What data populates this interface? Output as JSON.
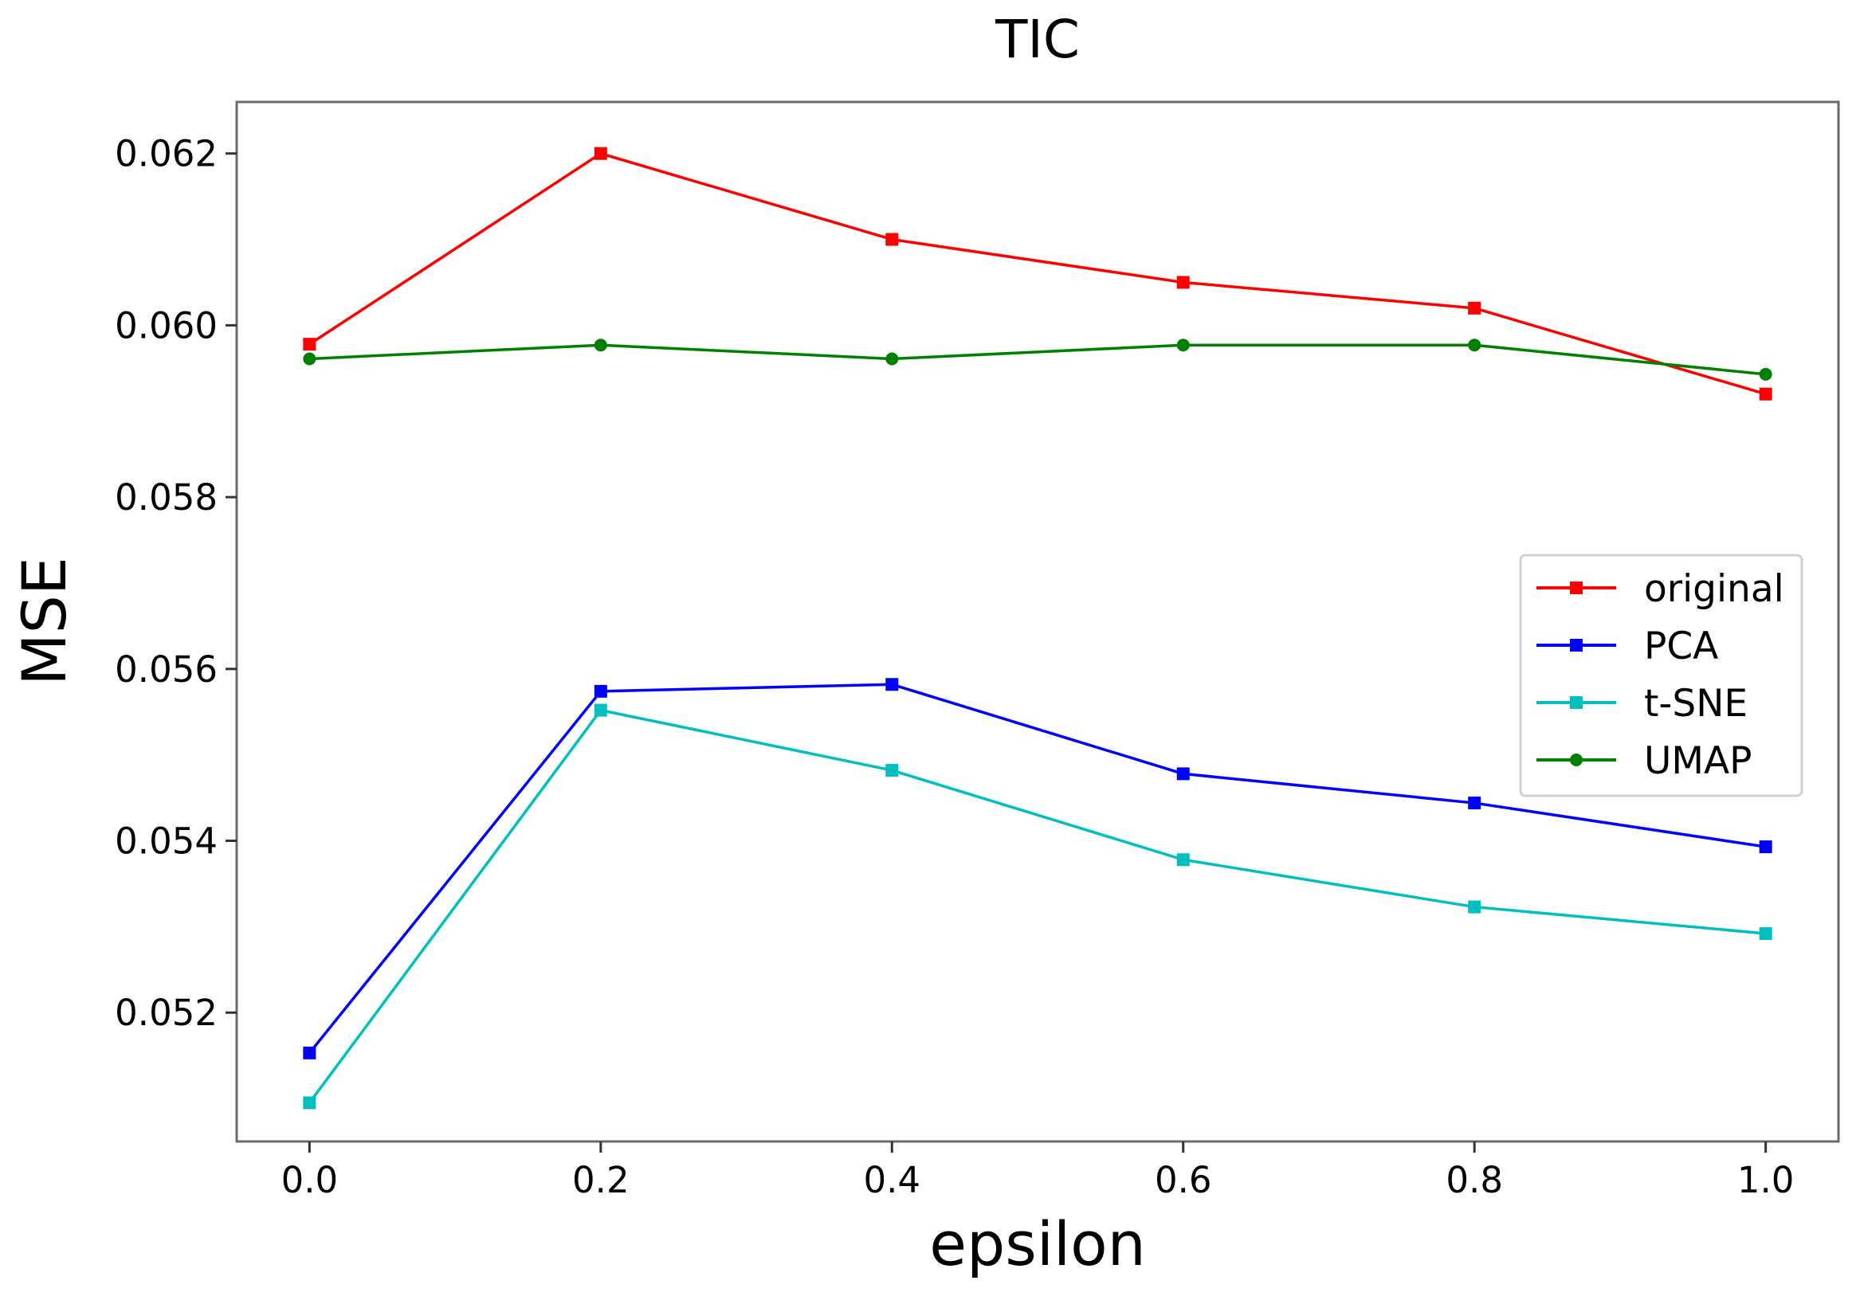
{
  "chart_data": {
    "type": "line",
    "title": "TIC",
    "xlabel": "epsilon",
    "ylabel": "MSE",
    "x": [
      0.0,
      0.2,
      0.4,
      0.6,
      0.8,
      1.0
    ],
    "xlim": [
      -0.05,
      1.05
    ],
    "ylim": [
      0.0505,
      0.0626
    ],
    "xticks": [
      "0.0",
      "0.2",
      "0.4",
      "0.6",
      "0.8",
      "1.0"
    ],
    "xtick_values": [
      0.0,
      0.2,
      0.4,
      0.6,
      0.8,
      1.0
    ],
    "yticks": [
      "0.052",
      "0.054",
      "0.056",
      "0.058",
      "0.060",
      "0.062"
    ],
    "ytick_values": [
      0.052,
      0.054,
      0.056,
      0.058,
      0.06,
      0.062
    ],
    "grid": false,
    "legend_position": "center-right",
    "series": [
      {
        "name": "original",
        "color": "#ff0000",
        "marker": "square",
        "values": [
          0.05978,
          0.062,
          0.061,
          0.0605,
          0.0602,
          0.0592
        ]
      },
      {
        "name": "PCA",
        "color": "#0000ff",
        "marker": "square",
        "values": [
          0.05153,
          0.05574,
          0.05582,
          0.05478,
          0.05444,
          0.05393
        ]
      },
      {
        "name": "t-SNE",
        "color": "#00bfbf",
        "marker": "square",
        "values": [
          0.05095,
          0.05552,
          0.05482,
          0.05378,
          0.05323,
          0.05292
        ]
      },
      {
        "name": "UMAP",
        "color": "#008000",
        "marker": "circle",
        "values": [
          0.05961,
          0.05977,
          0.05961,
          0.05977,
          0.05977,
          0.05943
        ]
      }
    ]
  }
}
